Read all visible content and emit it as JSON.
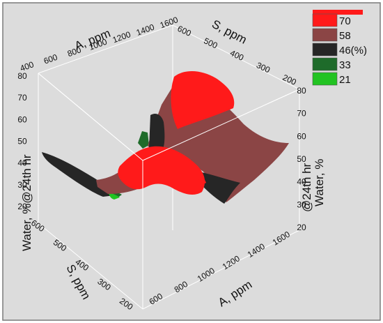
{
  "chart_data": {
    "type": "surface",
    "legend": {
      "placement": "top-right",
      "entries": [
        {
          "label": "70",
          "color": "#ff1a1a"
        },
        {
          "label": "58",
          "color": "#8b4545"
        },
        {
          "label": "46(%)",
          "color": "#262626"
        },
        {
          "label": "33",
          "color": "#1e6b2a"
        },
        {
          "label": "21",
          "color": "#22c322"
        }
      ]
    },
    "axes": {
      "a_label": "A, ppm",
      "s_label": "S, ppm",
      "water_label_line1": "Water, %",
      "water_label_line2": "@24th hr",
      "water_label_left": "Water, %@24th hr",
      "a_ticks": [
        "400",
        "600",
        "800",
        "1000",
        "1200",
        "1400",
        "1600"
      ],
      "a_ticks_bottom": [
        "600",
        "800",
        "1000",
        "1200",
        "1400",
        "1600"
      ],
      "s_ticks": [
        "600",
        "500",
        "400",
        "300",
        "200"
      ],
      "water_ticks": [
        "80",
        "70",
        "60",
        "50",
        "40",
        "30",
        "20"
      ],
      "a_range": [
        400,
        1600
      ],
      "s_range": [
        200,
        600
      ],
      "water_range": [
        20,
        80
      ]
    },
    "grid": false,
    "surface_color_levels": [
      70,
      58,
      46,
      33,
      21
    ]
  }
}
